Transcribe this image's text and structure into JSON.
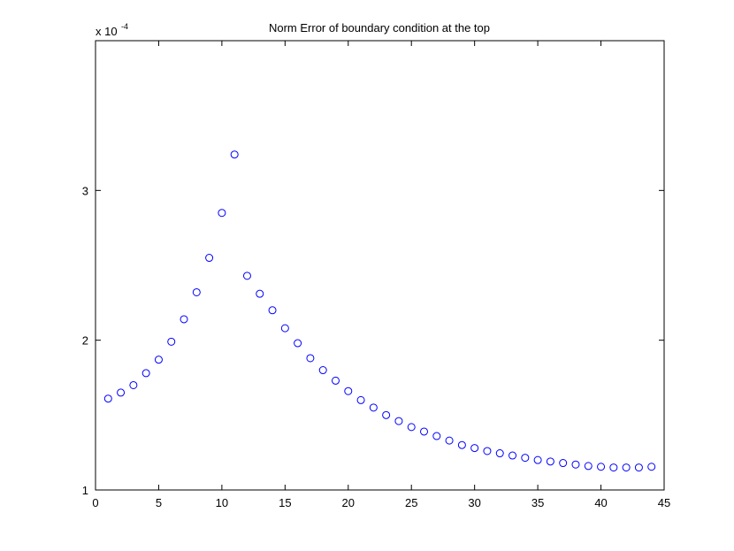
{
  "chart_data": {
    "type": "scatter",
    "title": "Norm Error of boundary condition at the top",
    "xlabel": "",
    "ylabel": "",
    "y_multiplier": {
      "base": "x 10",
      "exponent": "-4"
    },
    "xlim": [
      0,
      45
    ],
    "ylim": [
      1,
      4
    ],
    "xticks": [
      "0",
      "5",
      "10",
      "15",
      "20",
      "25",
      "30",
      "35",
      "40",
      "45"
    ],
    "yticks": [
      "1",
      "2",
      "3"
    ],
    "grid": false,
    "marker": "circle-open",
    "marker_color": "#0000ff",
    "series": [
      {
        "x": [
          1,
          2,
          3,
          4,
          5,
          6,
          7,
          8,
          9,
          10,
          11,
          12,
          13,
          14,
          15,
          16,
          17,
          18,
          19,
          20,
          21,
          22,
          23,
          24,
          25,
          26,
          27,
          28,
          29,
          30,
          31,
          32,
          33,
          34,
          35,
          36,
          37,
          38,
          39,
          40,
          41,
          42,
          43,
          44
        ],
        "y": [
          1.61,
          1.65,
          1.7,
          1.78,
          1.87,
          1.99,
          2.14,
          2.32,
          2.55,
          2.85,
          3.24,
          2.43,
          2.31,
          2.2,
          2.08,
          1.98,
          1.88,
          1.8,
          1.73,
          1.66,
          1.6,
          1.55,
          1.5,
          1.46,
          1.42,
          1.39,
          1.36,
          1.33,
          1.3,
          1.28,
          1.26,
          1.245,
          1.23,
          1.215,
          1.2,
          1.19,
          1.18,
          1.17,
          1.16,
          1.155,
          1.15,
          1.15,
          1.15,
          1.155
        ]
      }
    ]
  }
}
